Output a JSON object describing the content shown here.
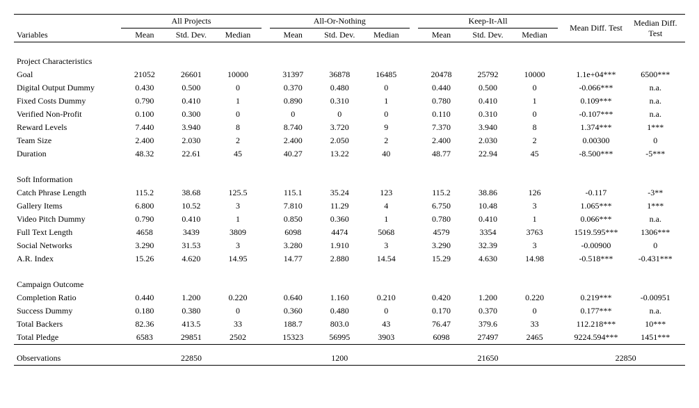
{
  "headers": {
    "variables": "Variables",
    "groups": [
      "All Projects",
      "All-Or-Nothing",
      "Keep-It-All"
    ],
    "stats": [
      "Mean",
      "Std. Dev.",
      "Median"
    ],
    "mean_diff": "Mean Diff. Test",
    "median_diff": "Median Diff. Test"
  },
  "sections": [
    {
      "title": "Project Characteristics",
      "rows": [
        {
          "label": "Goal",
          "g1": [
            "21052",
            "26601",
            "10000"
          ],
          "g2": [
            "31397",
            "36878",
            "16485"
          ],
          "g3": [
            "20478",
            "25792",
            "10000"
          ],
          "mdt": "1.1e+04***",
          "mdd": "6500***"
        },
        {
          "label": "Digital Output Dummy",
          "g1": [
            "0.430",
            "0.500",
            "0"
          ],
          "g2": [
            "0.370",
            "0.480",
            "0"
          ],
          "g3": [
            "0.440",
            "0.500",
            "0"
          ],
          "mdt": "-0.066***",
          "mdd": "n.a."
        },
        {
          "label": "Fixed Costs Dummy",
          "g1": [
            "0.790",
            "0.410",
            "1"
          ],
          "g2": [
            "0.890",
            "0.310",
            "1"
          ],
          "g3": [
            "0.780",
            "0.410",
            "1"
          ],
          "mdt": "0.109***",
          "mdd": "n.a."
        },
        {
          "label": "Verified Non-Profit",
          "g1": [
            "0.100",
            "0.300",
            "0"
          ],
          "g2": [
            "0",
            "0",
            "0"
          ],
          "g3": [
            "0.110",
            "0.310",
            "0"
          ],
          "mdt": "-0.107***",
          "mdd": "n.a."
        },
        {
          "label": "Reward Levels",
          "g1": [
            "7.440",
            "3.940",
            "8"
          ],
          "g2": [
            "8.740",
            "3.720",
            "9"
          ],
          "g3": [
            "7.370",
            "3.940",
            "8"
          ],
          "mdt": "1.374***",
          "mdd": "1***"
        },
        {
          "label": "Team Size",
          "g1": [
            "2.400",
            "2.030",
            "2"
          ],
          "g2": [
            "2.400",
            "2.050",
            "2"
          ],
          "g3": [
            "2.400",
            "2.030",
            "2"
          ],
          "mdt": "0.00300",
          "mdd": "0"
        },
        {
          "label": "Duration",
          "g1": [
            "48.32",
            "22.61",
            "45"
          ],
          "g2": [
            "40.27",
            "13.22",
            "40"
          ],
          "g3": [
            "48.77",
            "22.94",
            "45"
          ],
          "mdt": "-8.500***",
          "mdd": "-5***"
        }
      ]
    },
    {
      "title": "Soft Information",
      "rows": [
        {
          "label": "Catch Phrase Length",
          "g1": [
            "115.2",
            "38.68",
            "125.5"
          ],
          "g2": [
            "115.1",
            "35.24",
            "123"
          ],
          "g3": [
            "115.2",
            "38.86",
            "126"
          ],
          "mdt": "-0.117",
          "mdd": "-3**"
        },
        {
          "label": "Gallery Items",
          "g1": [
            "6.800",
            "10.52",
            "3"
          ],
          "g2": [
            "7.810",
            "11.29",
            "4"
          ],
          "g3": [
            "6.750",
            "10.48",
            "3"
          ],
          "mdt": "1.065***",
          "mdd": "1***"
        },
        {
          "label": "Video Pitch Dummy",
          "g1": [
            "0.790",
            "0.410",
            "1"
          ],
          "g2": [
            "0.850",
            "0.360",
            "1"
          ],
          "g3": [
            "0.780",
            "0.410",
            "1"
          ],
          "mdt": "0.066***",
          "mdd": "n.a."
        },
        {
          "label": "Full Text Length",
          "g1": [
            "4658",
            "3439",
            "3809"
          ],
          "g2": [
            "6098",
            "4474",
            "5068"
          ],
          "g3": [
            "4579",
            "3354",
            "3763"
          ],
          "mdt": "1519.595***",
          "mdd": "1306***"
        },
        {
          "label": "Social Networks",
          "g1": [
            "3.290",
            "31.53",
            "3"
          ],
          "g2": [
            "3.280",
            "1.910",
            "3"
          ],
          "g3": [
            "3.290",
            "32.39",
            "3"
          ],
          "mdt": "-0.00900",
          "mdd": "0"
        },
        {
          "label": "A.R. Index",
          "g1": [
            "15.26",
            "4.620",
            "14.95"
          ],
          "g2": [
            "14.77",
            "2.880",
            "14.54"
          ],
          "g3": [
            "15.29",
            "4.630",
            "14.98"
          ],
          "mdt": "-0.518***",
          "mdd": "-0.431***"
        }
      ]
    },
    {
      "title": "Campaign Outcome",
      "rows": [
        {
          "label": "Completion Ratio",
          "g1": [
            "0.440",
            "1.200",
            "0.220"
          ],
          "g2": [
            "0.640",
            "1.160",
            "0.210"
          ],
          "g3": [
            "0.420",
            "1.200",
            "0.220"
          ],
          "mdt": "0.219***",
          "mdd": "-0.00951"
        },
        {
          "label": "Success Dummy",
          "g1": [
            "0.180",
            "0.380",
            "0"
          ],
          "g2": [
            "0.360",
            "0.480",
            "0"
          ],
          "g3": [
            "0.170",
            "0.370",
            "0"
          ],
          "mdt": "0.177***",
          "mdd": "n.a."
        },
        {
          "label": "Total Backers",
          "g1": [
            "82.36",
            "413.5",
            "33"
          ],
          "g2": [
            "188.7",
            "803.0",
            "43"
          ],
          "g3": [
            "76.47",
            "379.6",
            "33"
          ],
          "mdt": "112.218***",
          "mdd": "10***"
        },
        {
          "label": "Total Pledge",
          "g1": [
            "6583",
            "29851",
            "2502"
          ],
          "g2": [
            "15323",
            "56995",
            "3903"
          ],
          "g3": [
            "6098",
            "27497",
            "2465"
          ],
          "mdt": "9224.594***",
          "mdd": "1451***"
        }
      ]
    }
  ],
  "observations": {
    "label": "Observations",
    "g1": "22850",
    "g2": "1200",
    "g3": "21650",
    "right": "22850"
  }
}
